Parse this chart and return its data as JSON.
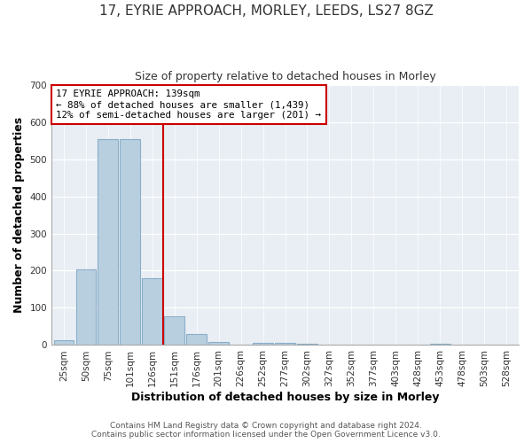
{
  "title_line1": "17, EYRIE APPROACH, MORLEY, LEEDS, LS27 8GZ",
  "title_line2": "Size of property relative to detached houses in Morley",
  "xlabel": "Distribution of detached houses by size in Morley",
  "ylabel": "Number of detached properties",
  "bar_labels": [
    "25sqm",
    "50sqm",
    "75sqm",
    "101sqm",
    "126sqm",
    "151sqm",
    "176sqm",
    "201sqm",
    "226sqm",
    "252sqm",
    "277sqm",
    "302sqm",
    "327sqm",
    "352sqm",
    "377sqm",
    "403sqm",
    "428sqm",
    "453sqm",
    "478sqm",
    "503sqm",
    "528sqm"
  ],
  "bar_values": [
    12,
    204,
    554,
    554,
    180,
    78,
    30,
    8,
    0,
    7,
    5,
    4,
    0,
    0,
    0,
    0,
    0,
    3,
    0,
    0,
    0
  ],
  "bar_color": "#b8cfe0",
  "bar_edge_color": "#8aaec8",
  "property_line_index": 4.5,
  "property_line_color": "#cc0000",
  "annotation_line1": "17 EYRIE APPROACH: 139sqm",
  "annotation_line2": "← 88% of detached houses are smaller (1,439)",
  "annotation_line3": "12% of semi-detached houses are larger (201) →",
  "annotation_box_color": "#ffffff",
  "annotation_box_edge": "#cc0000",
  "ylim": [
    0,
    700
  ],
  "yticks": [
    0,
    100,
    200,
    300,
    400,
    500,
    600,
    700
  ],
  "footer_line1": "Contains HM Land Registry data © Crown copyright and database right 2024.",
  "footer_line2": "Contains public sector information licensed under the Open Government Licence v3.0.",
  "bg_color": "#ffffff",
  "plot_bg_color": "#e8eef4",
  "title1_fontsize": 11,
  "title2_fontsize": 9,
  "axis_label_fontsize": 9,
  "tick_fontsize": 7.5,
  "footer_fontsize": 6.5
}
